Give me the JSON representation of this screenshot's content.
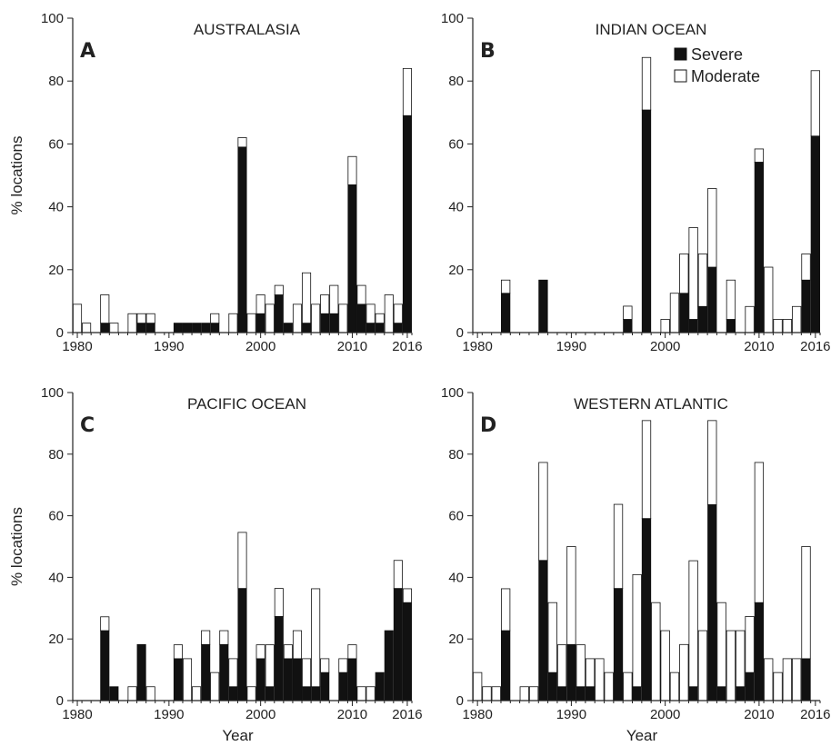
{
  "chart_data": [
    {
      "type": "bar",
      "stacked": true,
      "panel": "A",
      "title": "AUSTRALASIA",
      "xlabel": "",
      "ylabel": "% locations",
      "ylim": [
        0,
        100
      ],
      "yticks": [
        0,
        20,
        40,
        60,
        80,
        100
      ],
      "xticks": [
        "1980",
        "1990",
        "2000",
        "2010",
        "2016"
      ],
      "x": [
        1980,
        1981,
        1982,
        1983,
        1984,
        1985,
        1986,
        1987,
        1988,
        1989,
        1990,
        1991,
        1992,
        1993,
        1994,
        1995,
        1996,
        1997,
        1998,
        1999,
        2000,
        2001,
        2002,
        2003,
        2004,
        2005,
        2006,
        2007,
        2008,
        2009,
        2010,
        2011,
        2012,
        2013,
        2014,
        2015,
        2016
      ],
      "series": [
        {
          "name": "Severe",
          "values": [
            0,
            0,
            0,
            3,
            0,
            0,
            0,
            3,
            3,
            0,
            0,
            3,
            3,
            3,
            3,
            3,
            0,
            0,
            59,
            0,
            6,
            0,
            12,
            3,
            0,
            3,
            0,
            6,
            6,
            0,
            47,
            9,
            3,
            3,
            0,
            3,
            69
          ]
        },
        {
          "name": "Moderate",
          "values": [
            9,
            3,
            0,
            9,
            3,
            0,
            6,
            3,
            3,
            0,
            0,
            0,
            0,
            0,
            0,
            3,
            0,
            6,
            3,
            6,
            6,
            9,
            3,
            0,
            9,
            16,
            9,
            6,
            9,
            9,
            9,
            6,
            6,
            3,
            12,
            6,
            15
          ]
        }
      ]
    },
    {
      "type": "bar",
      "stacked": true,
      "panel": "B",
      "title": "INDIAN OCEAN",
      "xlabel": "",
      "ylabel": "",
      "ylim": [
        0,
        100
      ],
      "yticks": [
        0,
        20,
        40,
        60,
        80,
        100
      ],
      "xticks": [
        "1980",
        "1990",
        "2000",
        "2010",
        "2016"
      ],
      "legend": {
        "position": "top-right",
        "entries": [
          "Severe",
          "Moderate"
        ]
      },
      "x": [
        1980,
        1981,
        1982,
        1983,
        1984,
        1985,
        1986,
        1987,
        1988,
        1989,
        1990,
        1991,
        1992,
        1993,
        1994,
        1995,
        1996,
        1997,
        1998,
        1999,
        2000,
        2001,
        2002,
        2003,
        2004,
        2005,
        2006,
        2007,
        2008,
        2009,
        2010,
        2011,
        2012,
        2013,
        2014,
        2015,
        2016
      ],
      "series": [
        {
          "name": "Severe",
          "values": [
            0,
            0,
            0,
            12.5,
            0,
            0,
            0,
            16.7,
            0,
            0,
            0,
            0,
            0,
            0,
            0,
            0,
            4.2,
            0,
            70.8,
            0,
            0,
            0,
            12.5,
            4.2,
            8.3,
            20.8,
            0,
            4.2,
            0,
            0,
            54.2,
            0,
            0,
            0,
            0,
            16.7,
            62.5
          ]
        },
        {
          "name": "Moderate",
          "values": [
            0,
            0,
            0,
            4.2,
            0,
            0,
            0,
            0,
            0,
            0,
            0,
            0,
            0,
            0,
            0,
            0,
            4.2,
            0,
            16.7,
            0,
            4.2,
            12.5,
            12.5,
            29.2,
            16.7,
            25,
            0,
            12.5,
            0,
            8.3,
            4.2,
            20.8,
            4.2,
            4.2,
            8.3,
            8.3,
            20.8
          ]
        }
      ]
    },
    {
      "type": "bar",
      "stacked": true,
      "panel": "C",
      "title": "PACIFIC OCEAN",
      "xlabel": "Year",
      "ylabel": "% locations",
      "ylim": [
        0,
        100
      ],
      "yticks": [
        0,
        20,
        40,
        60,
        80,
        100
      ],
      "xticks": [
        "1980",
        "1990",
        "2000",
        "2010",
        "2016"
      ],
      "x": [
        1980,
        1981,
        1982,
        1983,
        1984,
        1985,
        1986,
        1987,
        1988,
        1989,
        1990,
        1991,
        1992,
        1993,
        1994,
        1995,
        1996,
        1997,
        1998,
        1999,
        2000,
        2001,
        2002,
        2003,
        2004,
        2005,
        2006,
        2007,
        2008,
        2009,
        2010,
        2011,
        2012,
        2013,
        2014,
        2015,
        2016
      ],
      "series": [
        {
          "name": "Severe",
          "values": [
            0,
            0,
            0,
            22.7,
            4.5,
            0,
            0,
            18.2,
            0,
            0,
            0,
            13.6,
            0,
            0,
            18.2,
            0,
            18.2,
            4.5,
            36.4,
            0,
            13.6,
            4.5,
            27.3,
            13.6,
            13.6,
            4.5,
            4.5,
            9.1,
            0,
            9.1,
            13.6,
            0,
            0,
            9.1,
            22.7,
            36.4,
            31.8
          ]
        },
        {
          "name": "Moderate",
          "values": [
            0,
            0,
            0,
            4.5,
            0,
            0,
            4.5,
            0,
            4.5,
            0,
            0,
            4.5,
            13.6,
            4.5,
            4.5,
            9.1,
            4.5,
            9.1,
            18.2,
            4.5,
            4.5,
            13.6,
            9.1,
            4.5,
            9.1,
            9.1,
            31.8,
            4.5,
            0,
            4.5,
            4.5,
            4.5,
            4.5,
            0,
            0,
            9.1,
            4.5
          ]
        }
      ]
    },
    {
      "type": "bar",
      "stacked": true,
      "panel": "D",
      "title": "WESTERN ATLANTIC",
      "xlabel": "Year",
      "ylabel": "",
      "ylim": [
        0,
        100
      ],
      "yticks": [
        0,
        20,
        40,
        60,
        80,
        100
      ],
      "xticks": [
        "1980",
        "1990",
        "2000",
        "2010",
        "2016"
      ],
      "x": [
        1980,
        1981,
        1982,
        1983,
        1984,
        1985,
        1986,
        1987,
        1988,
        1989,
        1990,
        1991,
        1992,
        1993,
        1994,
        1995,
        1996,
        1997,
        1998,
        1999,
        2000,
        2001,
        2002,
        2003,
        2004,
        2005,
        2006,
        2007,
        2008,
        2009,
        2010,
        2011,
        2012,
        2013,
        2014,
        2015,
        2016
      ],
      "series": [
        {
          "name": "Severe",
          "values": [
            0,
            0,
            0,
            22.7,
            0,
            0,
            0,
            45.5,
            9.1,
            4.5,
            18.2,
            4.5,
            4.5,
            0,
            0,
            36.4,
            0,
            4.5,
            59.1,
            0,
            0,
            0,
            0,
            4.5,
            0,
            63.6,
            4.5,
            0,
            4.5,
            9.1,
            31.8,
            0,
            0,
            0,
            0,
            13.6,
            0
          ]
        },
        {
          "name": "Moderate",
          "values": [
            9.1,
            4.5,
            4.5,
            13.6,
            0,
            4.5,
            4.5,
            31.8,
            22.7,
            13.6,
            31.8,
            13.6,
            9.1,
            13.6,
            9.1,
            27.3,
            9.1,
            36.4,
            31.8,
            31.8,
            22.7,
            9.1,
            18.2,
            40.9,
            22.7,
            27.3,
            27.3,
            22.7,
            18.2,
            18.2,
            45.5,
            13.6,
            9.1,
            13.6,
            13.6,
            36.4,
            0
          ]
        }
      ]
    }
  ]
}
